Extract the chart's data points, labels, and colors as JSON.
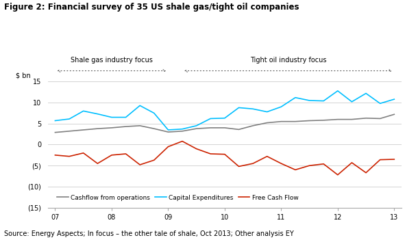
{
  "title": "Figure 2: Financial survey of 35 US shale gas/tight oil companies",
  "source_text": "Source: Energy Aspects; In focus – the other tale of shale, Oct 2013; Other analysis EY",
  "ylabel": "$ bn",
  "ylim": [
    -15,
    15
  ],
  "yticks": [
    -15,
    -10,
    -5,
    0,
    5,
    10,
    15
  ],
  "ytick_labels": [
    "(15)",
    "(10)",
    "(5)",
    "0",
    "5",
    "10",
    "15"
  ],
  "xlabel_ticks": [
    0,
    4,
    8,
    12,
    16,
    20,
    24
  ],
  "xlabel_labels": [
    "07",
    "08",
    "09",
    "10",
    "11",
    "12",
    "13"
  ],
  "shale_gas_label": "Shale gas industry focus",
  "tight_oil_label": "Tight oil industry focus",
  "cashflow_color": "#808080",
  "capex_color": "#00bfff",
  "fcf_color": "#cc2200",
  "background_color": "#ffffff",
  "grid_color": "#cccccc",
  "cashflow_label": "Cashflow from operations",
  "capex_label": "Capital Expenditures",
  "fcf_label": "Free Cash Flow",
  "x": [
    0,
    1,
    2,
    3,
    4,
    5,
    6,
    7,
    8,
    9,
    10,
    11,
    12,
    13,
    14,
    15,
    16,
    17,
    18,
    19,
    20,
    21,
    22,
    23,
    24
  ],
  "cashflow": [
    2.9,
    3.2,
    3.5,
    3.8,
    4.0,
    4.3,
    4.5,
    3.8,
    3.0,
    3.2,
    3.8,
    4.0,
    4.0,
    3.6,
    4.5,
    5.2,
    5.5,
    5.5,
    5.7,
    5.8,
    6.0,
    6.0,
    6.3,
    6.2,
    7.2
  ],
  "capex": [
    5.7,
    6.1,
    8.0,
    7.3,
    6.5,
    6.5,
    9.3,
    7.5,
    3.5,
    3.7,
    4.5,
    6.2,
    6.3,
    8.8,
    8.5,
    7.8,
    9.0,
    11.2,
    10.5,
    10.4,
    12.8,
    10.2,
    12.2,
    9.8,
    10.8
  ],
  "fcf": [
    -2.5,
    -2.8,
    -2.0,
    -4.5,
    -2.5,
    -2.2,
    -4.8,
    -3.7,
    -0.5,
    0.8,
    -1.0,
    -2.2,
    -2.3,
    -5.2,
    -4.5,
    -2.8,
    -4.5,
    -6.0,
    -5.0,
    -4.6,
    -7.2,
    -4.3,
    -6.7,
    -3.6,
    -3.5
  ]
}
